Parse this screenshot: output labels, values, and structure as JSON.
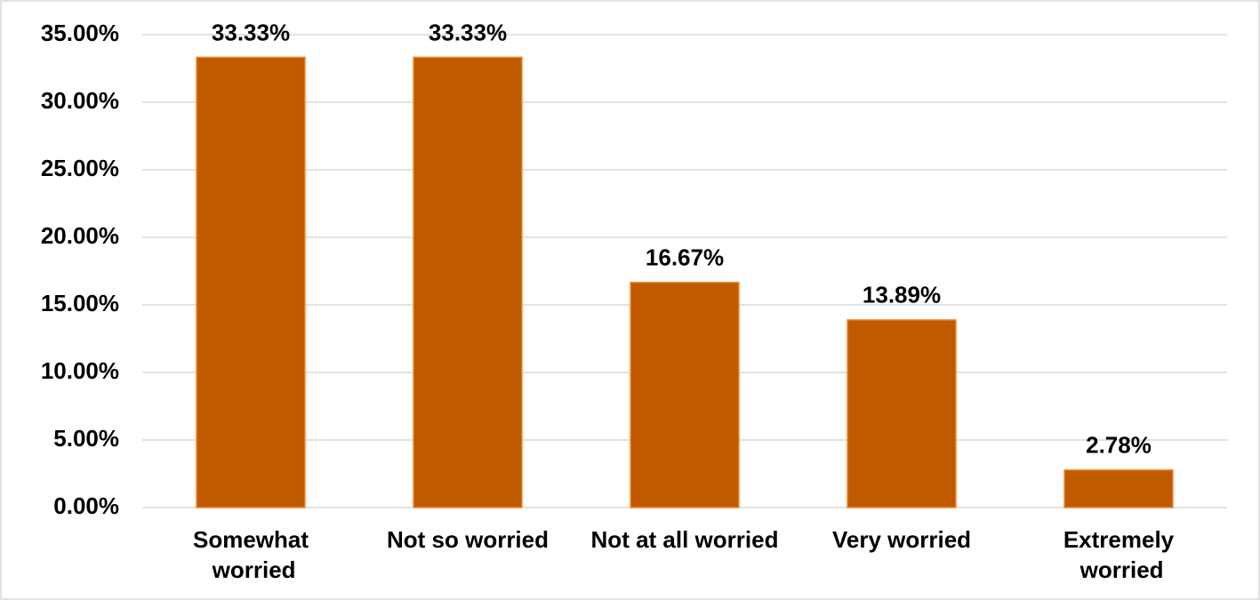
{
  "chart_data": {
    "type": "bar",
    "categories": [
      "Somewhat worried",
      "Not so worried",
      "Not at all worried",
      "Very worried",
      "Extremely worried"
    ],
    "values": [
      33.33,
      33.33,
      16.67,
      13.89,
      2.78
    ],
    "value_labels": [
      "33.33%",
      "33.33%",
      "16.67%",
      "13.89%",
      "2.78%"
    ],
    "color": "#c05a00",
    "ylim": [
      0,
      35
    ],
    "yticks": [
      {
        "value": 0,
        "label": "0.00%"
      },
      {
        "value": 5,
        "label": "5.00%"
      },
      {
        "value": 10,
        "label": "10.00%"
      },
      {
        "value": 15,
        "label": "15.00%"
      },
      {
        "value": 20,
        "label": "20.00%"
      },
      {
        "value": 25,
        "label": "25.00%"
      },
      {
        "value": 30,
        "label": "30.00%"
      },
      {
        "value": 35,
        "label": "35.00%"
      }
    ],
    "grid": true
  }
}
